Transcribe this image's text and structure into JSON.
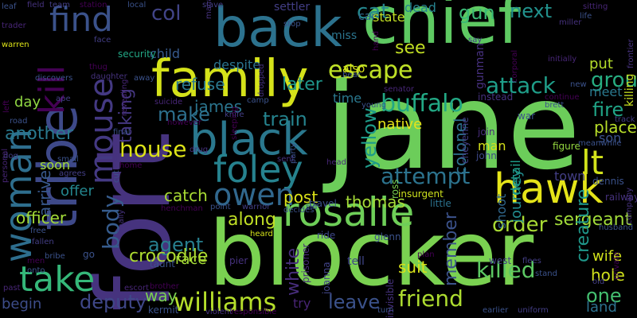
{
  "words": [
    {
      "text": "jane",
      "color": "#6ccd5a"
    },
    {
      "text": "blocker",
      "color": "#7ad151"
    },
    {
      "text": "chief",
      "color": "#5ec962"
    },
    {
      "text": "fort",
      "color": "#46337e"
    },
    {
      "text": "back",
      "color": "#2c728e"
    },
    {
      "text": "family",
      "color": "#d5e21a"
    },
    {
      "text": "tribe",
      "color": "#3e4989"
    },
    {
      "text": "black",
      "color": "#2a788e"
    },
    {
      "text": "hawk",
      "color": "#e5e419"
    },
    {
      "text": "foley",
      "color": "#26828e"
    },
    {
      "text": "rosalie",
      "color": "#6ece58"
    },
    {
      "text": "woman",
      "color": "#2e6e8e"
    },
    {
      "text": "take",
      "color": "#35b779"
    },
    {
      "text": "mouse",
      "color": "#443983"
    },
    {
      "text": "kill",
      "color": "#440154"
    },
    {
      "text": "find",
      "color": "#3b528b"
    },
    {
      "text": "owen",
      "color": "#31688e"
    },
    {
      "text": "lt",
      "color": "#d2e21b"
    },
    {
      "text": "williams",
      "color": "#b5de2b"
    },
    {
      "text": "buffalo",
      "color": "#22a884"
    },
    {
      "text": "attack",
      "color": "#1f9e89"
    },
    {
      "text": "attempt",
      "color": "#2c738e"
    },
    {
      "text": "escape",
      "color": "#bddf26"
    },
    {
      "text": "house",
      "color": "#dde318"
    },
    {
      "text": "friend",
      "color": "#addc30"
    },
    {
      "text": "killed",
      "color": "#5cc863"
    },
    {
      "text": "group",
      "color": "#27ad81"
    },
    {
      "text": "col",
      "color": "#414487"
    },
    {
      "text": "deputy",
      "color": "#3f4788"
    },
    {
      "text": "body",
      "color": "#365c8d"
    },
    {
      "text": "cat",
      "color": "#24878e"
    },
    {
      "text": "next",
      "color": "#21918c"
    },
    {
      "text": "gun",
      "color": "#3aba76"
    },
    {
      "text": "agent",
      "color": "#277f8e"
    },
    {
      "text": "crocodile",
      "color": "#addc30"
    },
    {
      "text": "train",
      "color": "#25838e"
    },
    {
      "text": "yellow",
      "color": "#1e9b8a"
    },
    {
      "text": "one",
      "color": "#44bf70"
    },
    {
      "text": "fire",
      "color": "#20a486"
    },
    {
      "text": "make",
      "color": "#2d708e"
    },
    {
      "text": "order",
      "color": "#a8db34"
    },
    {
      "text": "along",
      "color": "#c0df25"
    },
    {
      "text": "leave",
      "color": "#3b528b"
    },
    {
      "text": "taking",
      "color": "#453781"
    },
    {
      "text": "sergeant",
      "color": "#a0da39"
    },
    {
      "text": "later",
      "color": "#1f968b"
    },
    {
      "text": "see",
      "color": "#c2df23"
    },
    {
      "text": "refuse",
      "color": "#2a788e"
    },
    {
      "text": "thomas",
      "color": "#a5db36"
    },
    {
      "text": "post",
      "color": "#dde318"
    },
    {
      "text": "james",
      "color": "#2b758e"
    },
    {
      "text": "another",
      "color": "#29798e"
    },
    {
      "text": "officer",
      "color": "#a2da37"
    },
    {
      "text": "arrives",
      "color": "#38588c"
    },
    {
      "text": "catch",
      "color": "#a8db34"
    },
    {
      "text": "suit",
      "color": "#d8e219"
    },
    {
      "text": "way",
      "color": "#7ad151"
    },
    {
      "text": "hole",
      "color": "#d0e11c"
    },
    {
      "text": "race",
      "color": "#a2da37"
    },
    {
      "text": "wife",
      "color": "#d2e21b"
    },
    {
      "text": "creature",
      "color": "#1f988b"
    },
    {
      "text": "member",
      "color": "#3b528b"
    },
    {
      "text": "white",
      "color": "#472d7b"
    },
    {
      "text": "colonel",
      "color": "#2d708e"
    },
    {
      "text": "native",
      "color": "#e5e419"
    },
    {
      "text": "journey",
      "color": "#228c8d"
    },
    {
      "text": "place",
      "color": "#b8de29"
    },
    {
      "text": "meet",
      "color": "#2a788e"
    },
    {
      "text": "put",
      "color": "#b5de2b"
    },
    {
      "text": "detail",
      "color": "#1f9e89"
    },
    {
      "text": "shoot",
      "color": "#31688e"
    },
    {
      "text": "town",
      "color": "#433e85"
    },
    {
      "text": "begin",
      "color": "#3d4d8a"
    },
    {
      "text": "day",
      "color": "#90d743"
    },
    {
      "text": "soon",
      "color": "#a5db36"
    },
    {
      "text": "offer",
      "color": "#24868e"
    },
    {
      "text": "try",
      "color": "#482475"
    },
    {
      "text": "land",
      "color": "#2d718e"
    },
    {
      "text": "escape",
      "color": "#bddf26"
    },
    {
      "text": "child",
      "color": "#375b8d"
    },
    {
      "text": "despite",
      "color": "#2b748e"
    },
    {
      "text": "security",
      "color": "#22a785"
    },
    {
      "text": "dead",
      "color": "#26828e"
    },
    {
      "text": "state",
      "color": "#c2df23"
    },
    {
      "text": "car",
      "color": "#31678e"
    },
    {
      "text": "miss",
      "color": "#2b758e"
    },
    {
      "text": "time",
      "color": "#2a788e"
    },
    {
      "text": "also",
      "color": "#dde318"
    },
    {
      "text": "instead",
      "color": "#46327e"
    },
    {
      "text": "gunman",
      "color": "#46307e"
    },
    {
      "text": "settler",
      "color": "#433e85"
    },
    {
      "text": "man",
      "color": "#d5e21a"
    },
    {
      "text": "son",
      "color": "#3b528b"
    },
    {
      "text": "killing",
      "color": "#c8e020"
    },
    {
      "text": "dennis",
      "color": "#3b528b"
    },
    {
      "text": "railway",
      "color": "#46327e"
    },
    {
      "text": "figure",
      "color": "#95d840"
    },
    {
      "text": "john",
      "color": "#3e4989"
    },
    {
      "text": "join",
      "color": "#472c7a"
    },
    {
      "text": "war",
      "color": "#3b528b"
    },
    {
      "text": "glenn",
      "color": "#3b528b"
    },
    {
      "text": "insurgent",
      "color": "#cde11d"
    },
    {
      "text": "cheyenne",
      "color": "#433e85"
    },
    {
      "text": "prisoner",
      "color": "#472c7a"
    },
    {
      "text": "invisible",
      "color": "#46327e"
    },
    {
      "text": "joanna",
      "color": "#414487"
    },
    {
      "text": "ross",
      "color": "#7ad151"
    },
    {
      "text": "travel",
      "color": "#3b528b"
    },
    {
      "text": "little",
      "color": "#2c728e"
    },
    {
      "text": "plan",
      "color": "#440154"
    },
    {
      "text": "ride",
      "color": "#3e4989"
    },
    {
      "text": "heard",
      "color": "#d5e21a"
    },
    {
      "text": "tell",
      "color": "#404688"
    },
    {
      "text": "pier",
      "color": "#46327e"
    },
    {
      "text": "taunt",
      "color": "#3b528b"
    },
    {
      "text": "kermit",
      "color": "#3b528b"
    },
    {
      "text": "brother",
      "color": "#440154"
    },
    {
      "text": "escort",
      "color": "#482677"
    },
    {
      "text": "violent",
      "color": "#46327e"
    },
    {
      "text": "responsible",
      "color": "#440154"
    },
    {
      "text": "decides",
      "color": "#3b528b"
    },
    {
      "text": "warrior",
      "color": "#433e85"
    },
    {
      "text": "point",
      "color": "#3b528b"
    },
    {
      "text": "henchman",
      "color": "#440154"
    },
    {
      "text": "drug",
      "color": "#46327e"
    },
    {
      "text": "however",
      "color": "#440154"
    },
    {
      "text": "suicide",
      "color": "#482677"
    },
    {
      "text": "final",
      "color": "#3b528b"
    },
    {
      "text": "camp",
      "color": "#3b528b"
    },
    {
      "text": "knife",
      "color": "#433e85"
    },
    {
      "text": "sleeping",
      "color": "#440154"
    },
    {
      "text": "dropped",
      "color": "#46327e"
    },
    {
      "text": "stop",
      "color": "#3b528b"
    },
    {
      "text": "bear",
      "color": "#3b528b"
    },
    {
      "text": "hand",
      "color": "#440154"
    },
    {
      "text": "senator",
      "color": "#482677"
    },
    {
      "text": "young",
      "color": "#3b528b"
    },
    {
      "text": "brett",
      "color": "#3b528b"
    },
    {
      "text": "continue",
      "color": "#440154"
    },
    {
      "text": "track",
      "color": "#433e85"
    },
    {
      "text": "meanwhile",
      "color": "#3b528b"
    },
    {
      "text": "frontier",
      "color": "#46327e"
    },
    {
      "text": "initially",
      "color": "#482677"
    },
    {
      "text": "new",
      "color": "#3b528b"
    },
    {
      "text": "corporal",
      "color": "#440154"
    },
    {
      "text": "say",
      "color": "#433e85"
    },
    {
      "text": "miller",
      "color": "#46327e"
    },
    {
      "text": "life",
      "color": "#3b528b"
    },
    {
      "text": "sitting",
      "color": "#482677"
    },
    {
      "text": "slave",
      "color": "#433e85"
    },
    {
      "text": "manages",
      "color": "#46327e"
    },
    {
      "text": "local",
      "color": "#3b528b"
    },
    {
      "text": "station",
      "color": "#440154"
    },
    {
      "text": "team",
      "color": "#433e85"
    },
    {
      "text": "field",
      "color": "#46327e"
    },
    {
      "text": "trader",
      "color": "#482677"
    },
    {
      "text": "warren",
      "color": "#dde318"
    },
    {
      "text": "leaf",
      "color": "#3b528b"
    },
    {
      "text": "face",
      "color": "#433e85"
    },
    {
      "text": "thug",
      "color": "#440154"
    },
    {
      "text": "daughter",
      "color": "#46327e"
    },
    {
      "text": "discovers",
      "color": "#3b528b"
    },
    {
      "text": "revealing",
      "color": "#482677"
    },
    {
      "text": "ape",
      "color": "#433e85"
    },
    {
      "text": "away",
      "color": "#3b528b"
    },
    {
      "text": "left",
      "color": "#440154"
    },
    {
      "text": "road",
      "color": "#3b528b"
    },
    {
      "text": "dog",
      "color": "#433e85"
    },
    {
      "text": "small",
      "color": "#3b528b"
    },
    {
      "text": "pregnant",
      "color": "#46327e"
    },
    {
      "text": "home",
      "color": "#440154"
    },
    {
      "text": "agrees",
      "color": "#433e85"
    },
    {
      "text": "cut",
      "color": "#3b528b"
    },
    {
      "text": "personal",
      "color": "#482677"
    },
    {
      "text": "free",
      "color": "#3b528b"
    },
    {
      "text": "fallen",
      "color": "#433e85"
    },
    {
      "text": "bribe",
      "color": "#3b528b"
    },
    {
      "text": "finally",
      "color": "#46327e"
    },
    {
      "text": "men",
      "color": "#440154"
    },
    {
      "text": "onto",
      "color": "#3b528b"
    },
    {
      "text": "past",
      "color": "#482677"
    },
    {
      "text": "flees",
      "color": "#433e85"
    },
    {
      "text": "husband",
      "color": "#3b528b"
    },
    {
      "text": "company",
      "color": "#46327e"
    },
    {
      "text": "private",
      "color": "#440154"
    },
    {
      "text": "stand",
      "color": "#3b528b"
    },
    {
      "text": "old",
      "color": "#433e85"
    },
    {
      "text": "earlier",
      "color": "#3b528b"
    },
    {
      "text": "uniform",
      "color": "#433e85"
    },
    {
      "text": "turn",
      "color": "#3b528b"
    },
    {
      "text": "west",
      "color": "#433e85"
    },
    {
      "text": "go",
      "color": "#3b528b"
    },
    {
      "text": "sent",
      "color": "#46327e"
    },
    {
      "text": "party",
      "color": "#3b528b"
    },
    {
      "text": "head",
      "color": "#482677"
    },
    {
      "text": "sid",
      "color": "#3b528b"
    }
  ]
}
